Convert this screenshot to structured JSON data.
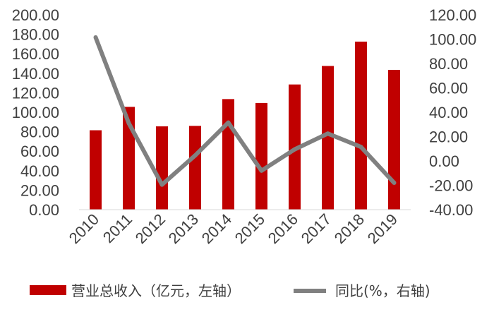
{
  "chart_data": {
    "type": "bar",
    "categories": [
      "2010",
      "2011",
      "2012",
      "2013",
      "2014",
      "2015",
      "2016",
      "2017",
      "2018",
      "2019"
    ],
    "series": [
      {
        "name": "营业总收入（亿元，左轴）",
        "type": "bar",
        "axis": "left",
        "color": "#C00000",
        "values": [
          81.5,
          105.5,
          85.5,
          86,
          113.5,
          109.5,
          128.5,
          147.5,
          172.5,
          143.5
        ]
      },
      {
        "name": "同比(%，右轴)",
        "type": "line",
        "axis": "right",
        "color": "#808080",
        "values": [
          101.5,
          31,
          -19.5,
          4.5,
          31.5,
          -8,
          9.5,
          22.5,
          11.5,
          -18
        ]
      }
    ],
    "left_axis": {
      "ylim": [
        0,
        200
      ],
      "ticks": [
        "0.00",
        "20.00",
        "40.00",
        "60.00",
        "80.00",
        "100.00",
        "120.00",
        "140.00",
        "160.00",
        "180.00",
        "200.00"
      ]
    },
    "right_axis": {
      "ylim": [
        -40,
        120
      ],
      "ticks": [
        "-40.00",
        "-20.00",
        "0.00",
        "20.00",
        "40.00",
        "60.00",
        "80.00",
        "100.00",
        "120.00"
      ]
    },
    "legend": {
      "placement": "bottom",
      "items": [
        "营业总收入（亿元，左轴）",
        "同比(%，右轴)"
      ]
    },
    "grid": false,
    "title": "",
    "xlabel": "",
    "ylabel": ""
  }
}
